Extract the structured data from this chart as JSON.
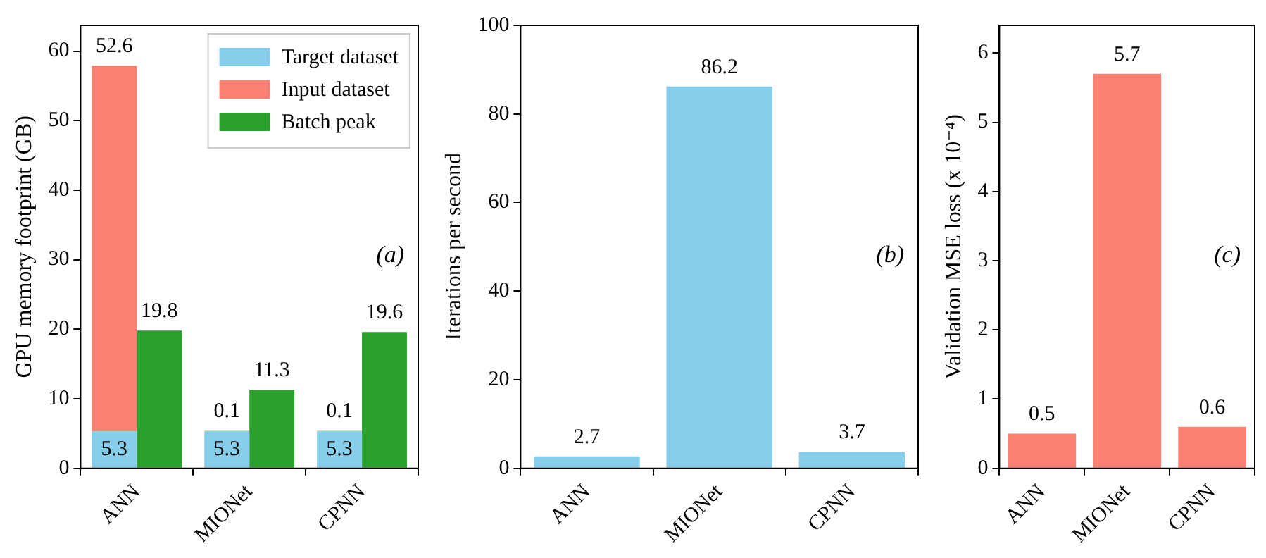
{
  "chart_data": [
    {
      "type": "bar",
      "ylabel": "GPU memory footprint (GB)",
      "categories": [
        "ANN",
        "MIONet",
        "CPNN"
      ],
      "legend": "top right",
      "grid": false,
      "ylim": [
        0,
        63.7
      ],
      "yticks": [
        0,
        10,
        20,
        30,
        40,
        50,
        60
      ],
      "annotations": [
        "(a)"
      ],
      "series": [
        {
          "name": "Target dataset",
          "color": "#87ceeb",
          "values": [
            5.3,
            5.3,
            5.3
          ],
          "value_labels": [
            "5.3",
            "5.3",
            "5.3"
          ]
        },
        {
          "name": "Input dataset",
          "color": "#fa8072",
          "values": [
            52.6,
            0.1,
            0.1
          ],
          "base": [
            5.3,
            5.3,
            5.3
          ],
          "value_labels": [
            "52.6",
            "0.1",
            "0.1"
          ]
        },
        {
          "name": "Batch peak",
          "color": "#2ca02c",
          "values": [
            19.8,
            11.3,
            19.6
          ],
          "value_labels": [
            "19.8",
            "11.3",
            "19.6"
          ]
        }
      ]
    },
    {
      "type": "bar",
      "ylabel": "Iterations per second",
      "categories": [
        "ANN",
        "MIONet",
        "CPNN"
      ],
      "grid": false,
      "ylim": [
        0,
        100
      ],
      "yticks": [
        0,
        20,
        40,
        60,
        80,
        100
      ],
      "annotations": [
        "(b)"
      ],
      "data_labels": true,
      "series": [
        {
          "color": "#87ceeb",
          "values": [
            2.7,
            86.2,
            3.7
          ]
        }
      ]
    },
    {
      "type": "bar",
      "ylabel": "Validation MSE loss (x 10⁻⁴)",
      "categories": [
        "ANN",
        "MIONet",
        "CPNN"
      ],
      "grid": false,
      "ylim": [
        0,
        6.4
      ],
      "yticks": [
        0,
        1,
        2,
        3,
        4,
        5,
        6
      ],
      "annotations": [
        "(c)"
      ],
      "data_labels": true,
      "series": [
        {
          "color": "#fa8072",
          "values": [
            0.5,
            5.7,
            0.6
          ]
        }
      ]
    }
  ]
}
